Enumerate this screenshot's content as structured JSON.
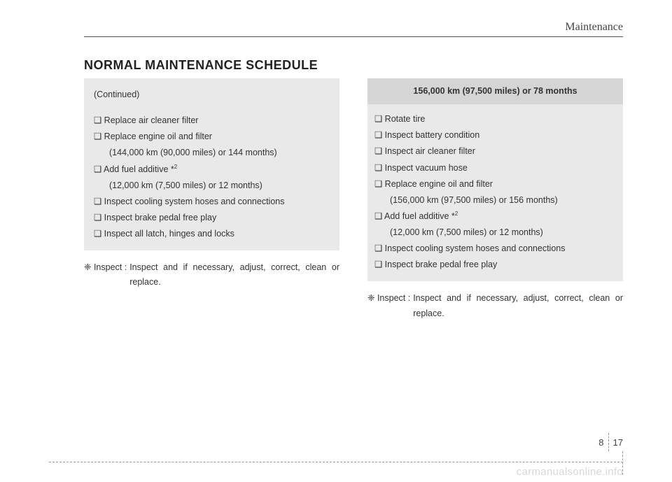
{
  "header": {
    "section": "Maintenance"
  },
  "title": "NORMAL MAINTENANCE SCHEDULE",
  "left": {
    "continued": "(Continued)",
    "items": [
      "❑ Replace air cleaner filter",
      "❑ Replace engine oil and filter",
      "(144,000 km (90,000 miles) or 144 months)",
      "❑ Add fuel additive *",
      "(12,000 km (7,500 miles) or 12 months)",
      "❑ Inspect cooling system hoses and connections",
      "❑ Inspect brake pedal free play",
      "❑ Inspect all latch, hinges and locks"
    ],
    "sup": "2",
    "note_lead": "❈ Inspect :",
    "note_body": "Inspect and if necessary, adjust, correct, clean or replace."
  },
  "right": {
    "header": "156,000 km (97,500 miles) or 78 months",
    "items": [
      "❑ Rotate tire",
      "❑ Inspect battery condition",
      "❑ Inspect air cleaner filter",
      "❑ Inspect vacuum hose",
      "❑ Replace engine oil and filter",
      "(156,000 km (97,500 miles) or 156 months)",
      "❑ Add fuel additive *",
      "(12,000 km (7,500 miles) or 12 months)",
      "❑ Inspect cooling system hoses and connections",
      "❑ Inspect brake pedal free play"
    ],
    "sup": "2",
    "note_lead": "❈ Inspect :",
    "note_body": "Inspect and if necessary, adjust, correct, clean or replace."
  },
  "page": {
    "chapter": "8",
    "num": "17"
  },
  "watermark": "carmanualsonline.info"
}
